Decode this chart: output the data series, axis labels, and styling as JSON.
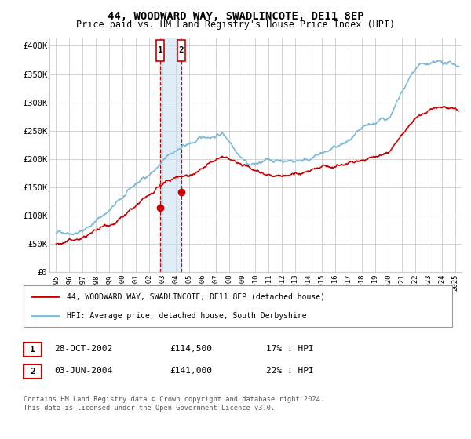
{
  "title": "44, WOODWARD WAY, SWADLINCOTE, DE11 8EP",
  "subtitle": "Price paid vs. HM Land Registry's House Price Index (HPI)",
  "title_fontsize": 10,
  "subtitle_fontsize": 8.5,
  "ylabel_ticks": [
    "£0",
    "£50K",
    "£100K",
    "£150K",
    "£200K",
    "£250K",
    "£300K",
    "£350K",
    "£400K"
  ],
  "ytick_values": [
    0,
    50000,
    100000,
    150000,
    200000,
    250000,
    300000,
    350000,
    400000
  ],
  "ylim": [
    0,
    415000
  ],
  "xlim_start": 1994.5,
  "xlim_end": 2025.5,
  "hpi_color": "#7ab8d9",
  "price_color": "#cc0000",
  "bg_color": "#ffffff",
  "grid_color": "#cccccc",
  "sale1_date": 2002.82,
  "sale1_price": 114500,
  "sale2_date": 2004.42,
  "sale2_price": 141000,
  "legend_entries": [
    "44, WOODWARD WAY, SWADLINCOTE, DE11 8EP (detached house)",
    "HPI: Average price, detached house, South Derbyshire"
  ],
  "table_rows": [
    [
      "1",
      "28-OCT-2002",
      "£114,500",
      "17% ↓ HPI"
    ],
    [
      "2",
      "03-JUN-2004",
      "£141,000",
      "22% ↓ HPI"
    ]
  ],
  "footnote": "Contains HM Land Registry data © Crown copyright and database right 2024.\nThis data is licensed under the Open Government Licence v3.0.",
  "shade_color": "#cce0f0",
  "vline_color": "#cc0000"
}
